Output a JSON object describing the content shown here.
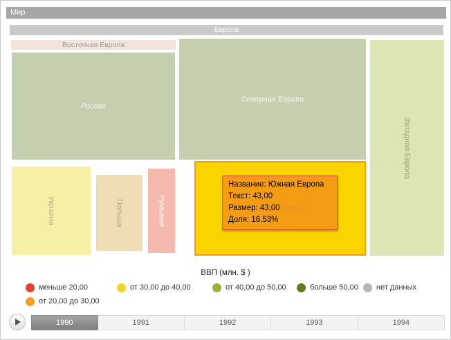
{
  "treemap": {
    "root": {
      "label": "Мир",
      "color": "#a7a7a7"
    },
    "group": {
      "label": "Европа",
      "color": "#c9c9c9"
    },
    "subgroup": {
      "label": "Восточная Европа",
      "color": "#f2e4da"
    },
    "tiles": [
      {
        "id": "russia",
        "label": "Россия",
        "color": "#c3cfae"
      },
      {
        "id": "ukraine",
        "label": "Украина",
        "color": "#f6f0a7"
      },
      {
        "id": "poland",
        "label": "Польша",
        "color": "#eeddb5"
      },
      {
        "id": "romania",
        "label": "Румыния",
        "color": "#f5b9ae"
      },
      {
        "id": "north-europe",
        "label": "Северная Европа",
        "color": "#c3cfae"
      },
      {
        "id": "south-europe",
        "label": "Южная Европа",
        "color": "#fad400",
        "border_color": "#ef9f10"
      },
      {
        "id": "west-europe",
        "label": "Западная Европа",
        "color": "#dce6b4"
      }
    ]
  },
  "tooltip": {
    "background": "rgba(243,146,25,0.85)",
    "border_color": "#d2451e",
    "lines": [
      "Название: Южная Европа",
      "Текст: 43,00",
      "Размер: 43,00",
      "Доля: 16,53%"
    ]
  },
  "legend": {
    "title": "ВВП (млн. $ )",
    "rows": [
      [
        {
          "label": "меньше 20,00",
          "color": "#e8402c"
        },
        {
          "label": "от 30,00 до 40,00",
          "color": "#f4d422"
        },
        {
          "label": "от 40,00 до 50,00",
          "color": "#a2ad38"
        },
        {
          "label": "больше 50,00",
          "color": "#5c7d20"
        },
        {
          "label": "нет данных",
          "color": "#b5b5b5"
        }
      ],
      [
        {
          "label": "от 20,00 до 30,00",
          "color": "#f59d25"
        }
      ]
    ]
  },
  "timeline": {
    "years": [
      "1990",
      "1991",
      "1992",
      "1993",
      "1994"
    ],
    "selected": "1990"
  },
  "chart_data": {
    "type": "treemap",
    "title": "ВВП (млн. $ )",
    "root": "Мир",
    "groups": [
      {
        "name": "Европа",
        "children": [
          {
            "name": "Восточная Европа",
            "children": [
              {
                "name": "Россия"
              },
              {
                "name": "Украина"
              },
              {
                "name": "Польша"
              },
              {
                "name": "Румыния"
              }
            ]
          },
          {
            "name": "Северная Европа"
          },
          {
            "name": "Южная Европа",
            "value": 43.0,
            "share_pct": 16.53,
            "highlighted": true
          },
          {
            "name": "Западная Европа"
          }
        ]
      }
    ],
    "legend_ranges": [
      "меньше 20,00",
      "от 20,00 до 30,00",
      "от 30,00 до 40,00",
      "от 40,00 до 50,00",
      "больше 50,00",
      "нет данных"
    ],
    "timeline_years": [
      1990,
      1991,
      1992,
      1993,
      1994
    ],
    "selected_year": 1990
  }
}
